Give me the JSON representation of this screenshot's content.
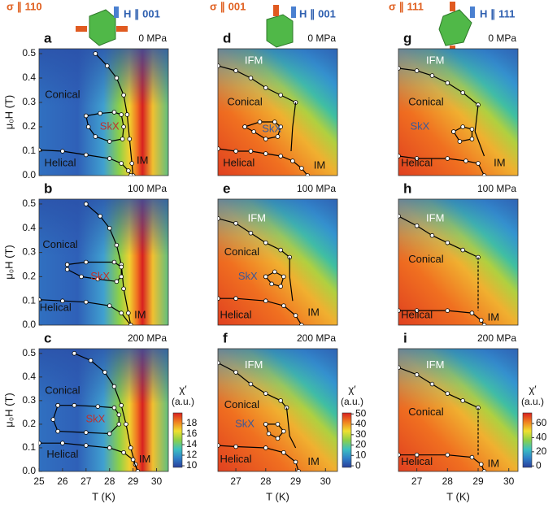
{
  "headers": [
    {
      "stress": "σ ∥ 110",
      "field": "H ∥ 001"
    },
    {
      "stress": "σ ∥ 001",
      "field": "H ∥ 001"
    },
    {
      "stress": "σ ∥ 111",
      "field": "H ∥ 111"
    }
  ],
  "chart_data": [
    {
      "type": "phase-diagram",
      "panel": "a",
      "pressure": "0 MPa",
      "xlim": [
        25,
        30.5
      ],
      "ylim": [
        0,
        0.52
      ],
      "ylabel": "μ₀H (T)",
      "yticks": [
        {
          "value": 0,
          "label": "0.0"
        },
        0.1,
        0.2,
        0.3,
        0.4,
        0.5
      ],
      "annotations": [
        "Conical",
        "SkX",
        "Helical",
        "IM"
      ],
      "series": [
        {
          "color": "#000",
          "markers": true,
          "x": [
            27.4,
            27.9,
            28.3,
            28.6,
            28.75,
            28.85,
            28.95,
            29.0
          ],
          "values": [
            0.5,
            0.45,
            0.4,
            0.33,
            0.25,
            0.15,
            0.05,
            0.0
          ]
        },
        {
          "color": "#000",
          "markers": true,
          "x": [
            27.0,
            27.6,
            28.2,
            28.5,
            28.6,
            28.55,
            28.0,
            27.4,
            27.1,
            27.0
          ],
          "values": [
            0.245,
            0.255,
            0.26,
            0.25,
            0.2,
            0.15,
            0.14,
            0.16,
            0.2,
            0.245
          ]
        },
        {
          "color": "#000",
          "markers": true,
          "x": [
            25.0,
            26.0,
            27.0,
            28.0,
            28.5,
            28.8,
            28.9
          ],
          "values": [
            0.105,
            0.1,
            0.085,
            0.07,
            0.05,
            0.02,
            0.0
          ]
        }
      ]
    },
    {
      "type": "phase-diagram",
      "panel": "b",
      "pressure": "100 MPa",
      "xlim": [
        25,
        30.5
      ],
      "ylim": [
        0,
        0.52
      ],
      "ylabel": "μ₀H (T)",
      "yticks": [
        {
          "value": 0,
          "label": "0.0"
        },
        0.1,
        0.2,
        0.3,
        0.4,
        0.5
      ],
      "annotations": [
        "Conical",
        "SkX",
        "Helical",
        "IM"
      ],
      "series": [
        {
          "color": "#000",
          "markers": true,
          "x": [
            27.0,
            27.6,
            28.0,
            28.3,
            28.5,
            28.6,
            28.8,
            28.9
          ],
          "values": [
            0.5,
            0.45,
            0.4,
            0.33,
            0.25,
            0.15,
            0.05,
            0.0
          ]
        },
        {
          "color": "#000",
          "markers": true,
          "x": [
            26.2,
            27.0,
            28.2,
            28.5,
            28.5,
            28.3,
            27.5,
            26.8,
            26.2,
            26.2
          ],
          "values": [
            0.25,
            0.26,
            0.26,
            0.24,
            0.2,
            0.18,
            0.19,
            0.2,
            0.23,
            0.25
          ]
        },
        {
          "color": "#000",
          "markers": true,
          "x": [
            25.0,
            26.0,
            27.0,
            28.0,
            28.5,
            28.9
          ],
          "values": [
            0.105,
            0.1,
            0.095,
            0.08,
            0.05,
            0.0
          ]
        }
      ]
    },
    {
      "type": "phase-diagram",
      "panel": "c",
      "pressure": "200 MPa",
      "xlim": [
        25,
        30.5
      ],
      "ylim": [
        0,
        0.52
      ],
      "xlabel": "T (K)",
      "xticks": [
        25,
        26,
        27,
        28,
        29,
        30
      ],
      "ylabel": "μ₀H (T)",
      "yticks": [
        {
          "value": 0,
          "label": "0.0"
        },
        0.1,
        0.2,
        0.3,
        0.4,
        0.5
      ],
      "annotations": [
        "Conical",
        "SkX",
        "Helical",
        "IM"
      ],
      "series": [
        {
          "color": "#000",
          "markers": true,
          "x": [
            26.5,
            27.2,
            27.8,
            28.2,
            28.5,
            28.7,
            28.9,
            29.1,
            29.2
          ],
          "values": [
            0.5,
            0.47,
            0.42,
            0.36,
            0.28,
            0.2,
            0.1,
            0.03,
            0.0
          ]
        },
        {
          "color": "#000",
          "markers": true,
          "x": [
            25.8,
            26.5,
            27.5,
            28.2,
            28.4,
            28.4,
            28.0,
            27.0,
            25.8,
            25.6,
            25.8
          ],
          "values": [
            0.28,
            0.28,
            0.275,
            0.27,
            0.24,
            0.2,
            0.16,
            0.165,
            0.17,
            0.22,
            0.28
          ]
        },
        {
          "color": "#000",
          "markers": true,
          "x": [
            25.0,
            26.0,
            27.0,
            28.0,
            28.6,
            29.0,
            29.2
          ],
          "values": [
            0.12,
            0.12,
            0.11,
            0.1,
            0.08,
            0.05,
            0.0
          ]
        }
      ],
      "colorbar": {
        "label": "χ′",
        "unit": "(a.u.)",
        "lim": [
          9.7,
          20
        ],
        "ticks": [
          10,
          12,
          14,
          16,
          18
        ],
        "colors": [
          "#2a3f9a",
          "#2f80c8",
          "#3cc0c0",
          "#8cd048",
          "#f0e030",
          "#f08020",
          "#d82020"
        ]
      }
    },
    {
      "type": "phase-diagram",
      "panel": "d",
      "pressure": "0 MPa",
      "xlim": [
        26.4,
        30.4
      ],
      "ylim": [
        0,
        0.52
      ],
      "annotations": [
        "IFM",
        "Conical",
        "SkX",
        "Helical",
        "IM"
      ],
      "series": [
        {
          "color": "#000",
          "markers": true,
          "x": [
            26.4,
            27.0,
            27.5,
            28.0,
            28.5,
            29.0
          ],
          "values": [
            0.45,
            0.43,
            0.4,
            0.36,
            0.33,
            0.3
          ]
        },
        {
          "color": "#000",
          "markers": false,
          "x": [
            29.0,
            28.9,
            28.85
          ],
          "values": [
            0.3,
            0.2,
            0.1
          ]
        },
        {
          "color": "#000",
          "markers": true,
          "x": [
            27.3,
            27.8,
            28.3,
            28.5,
            28.4,
            28.0,
            27.6,
            27.3
          ],
          "values": [
            0.2,
            0.22,
            0.22,
            0.2,
            0.16,
            0.15,
            0.18,
            0.2
          ]
        },
        {
          "color": "#000",
          "markers": true,
          "x": [
            26.4,
            27.0,
            27.5,
            28.0,
            28.5,
            28.9,
            29.2,
            29.4
          ],
          "values": [
            0.11,
            0.1,
            0.1,
            0.09,
            0.08,
            0.06,
            0.03,
            0.0
          ]
        }
      ]
    },
    {
      "type": "phase-diagram",
      "panel": "e",
      "pressure": "100 MPa",
      "xlim": [
        26.4,
        30.4
      ],
      "ylim": [
        0,
        0.52
      ],
      "annotations": [
        "IFM",
        "Conical",
        "SkX",
        "Helical",
        "IM"
      ],
      "series": [
        {
          "color": "#000",
          "markers": true,
          "x": [
            26.4,
            27.0,
            27.5,
            28.0,
            28.5,
            28.8
          ],
          "values": [
            0.44,
            0.42,
            0.38,
            0.34,
            0.31,
            0.28
          ]
        },
        {
          "color": "#000",
          "markers": false,
          "x": [
            28.8,
            28.8,
            28.9
          ],
          "values": [
            0.28,
            0.2,
            0.1
          ]
        },
        {
          "color": "#000",
          "markers": true,
          "x": [
            28.0,
            28.3,
            28.6,
            28.5,
            28.2,
            28.0
          ],
          "values": [
            0.2,
            0.22,
            0.2,
            0.16,
            0.17,
            0.2
          ]
        },
        {
          "color": "#000",
          "markers": true,
          "x": [
            26.4,
            27.0,
            28.0,
            28.6,
            29.0,
            29.2
          ],
          "values": [
            0.11,
            0.11,
            0.1,
            0.08,
            0.04,
            0.0
          ]
        }
      ]
    },
    {
      "type": "phase-diagram",
      "panel": "f",
      "pressure": "200 MPa",
      "xlim": [
        26.4,
        30.4
      ],
      "ylim": [
        0,
        0.52
      ],
      "xlabel": "T (K)",
      "xticks": [
        27,
        28,
        29,
        30
      ],
      "annotations": [
        "IFM",
        "Conical",
        "SkX",
        "Helical",
        "IM"
      ],
      "series": [
        {
          "color": "#000",
          "markers": true,
          "x": [
            26.4,
            27.0,
            27.5,
            28.0,
            28.5,
            28.7
          ],
          "values": [
            0.46,
            0.42,
            0.37,
            0.33,
            0.3,
            0.27
          ]
        },
        {
          "color": "#000",
          "markers": false,
          "x": [
            28.7,
            28.8,
            29.0
          ],
          "values": [
            0.27,
            0.15,
            0.1
          ]
        },
        {
          "color": "#000",
          "markers": true,
          "x": [
            28.0,
            28.4,
            28.6,
            28.4,
            28.1,
            28.0
          ],
          "values": [
            0.2,
            0.2,
            0.17,
            0.14,
            0.16,
            0.2
          ]
        },
        {
          "color": "#000",
          "markers": true,
          "x": [
            26.4,
            27.0,
            28.0,
            28.6,
            29.0,
            29.1
          ],
          "values": [
            0.11,
            0.105,
            0.1,
            0.08,
            0.04,
            0.0
          ]
        }
      ],
      "colorbar": {
        "label": "χ′",
        "unit": "(a.u.)",
        "lim": [
          -1.5,
          51
        ],
        "ticks": [
          0,
          10,
          20,
          30,
          40,
          50
        ],
        "colors": [
          "#2a3f9a",
          "#2f80c8",
          "#3cc0c0",
          "#8cd048",
          "#f0e030",
          "#f08020",
          "#d82020"
        ]
      }
    },
    {
      "type": "phase-diagram",
      "panel": "g",
      "pressure": "0 MPa",
      "xlim": [
        26.4,
        30.3
      ],
      "ylim": [
        0,
        0.52
      ],
      "annotations": [
        "IFM",
        "Conical",
        "SkX",
        "Helical",
        "IM"
      ],
      "series": [
        {
          "color": "#000",
          "markers": true,
          "x": [
            26.4,
            27.0,
            27.5,
            28.0,
            28.5,
            29.0
          ],
          "values": [
            0.44,
            0.43,
            0.41,
            0.38,
            0.34,
            0.29
          ]
        },
        {
          "color": "#000",
          "markers": false,
          "x": [
            29.0,
            28.9,
            29.2
          ],
          "values": [
            0.29,
            0.18,
            0.08
          ]
        },
        {
          "color": "#000",
          "markers": true,
          "x": [
            28.2,
            28.5,
            28.8,
            28.8,
            28.4,
            28.2
          ],
          "values": [
            0.18,
            0.2,
            0.19,
            0.15,
            0.14,
            0.18
          ]
        },
        {
          "color": "#000",
          "markers": true,
          "x": [
            26.4,
            27.0,
            28.0,
            28.6,
            29.0,
            29.2
          ],
          "values": [
            0.08,
            0.07,
            0.07,
            0.06,
            0.05,
            0.0
          ]
        }
      ]
    },
    {
      "type": "phase-diagram",
      "panel": "h",
      "pressure": "100 MPa",
      "xlim": [
        26.4,
        30.3
      ],
      "ylim": [
        0,
        0.52
      ],
      "annotations": [
        "IFM",
        "Conical",
        "Helical",
        "IM"
      ],
      "series": [
        {
          "color": "#000",
          "markers": true,
          "x": [
            26.4,
            27.0,
            27.5,
            28.0,
            28.5,
            29.0
          ],
          "values": [
            0.45,
            0.41,
            0.37,
            0.34,
            0.31,
            0.28
          ]
        },
        {
          "color": "#000",
          "markers": false,
          "dashed": true,
          "x": [
            29.0,
            29.0
          ],
          "values": [
            0.28,
            0.06
          ]
        },
        {
          "color": "#000",
          "markers": true,
          "x": [
            26.4,
            27.0,
            28.0,
            28.8,
            29.1,
            29.2
          ],
          "values": [
            0.06,
            0.06,
            0.06,
            0.05,
            0.02,
            0.0
          ]
        }
      ]
    },
    {
      "type": "phase-diagram",
      "panel": "i",
      "pressure": "200 MPa",
      "xlim": [
        26.4,
        30.3
      ],
      "ylim": [
        0,
        0.52
      ],
      "xlabel": "T (K)",
      "xticks": [
        27,
        28,
        29,
        30
      ],
      "annotations": [
        "IFM",
        "Conical",
        "Helical",
        "IM"
      ],
      "series": [
        {
          "color": "#000",
          "markers": true,
          "x": [
            26.4,
            27.0,
            27.5,
            28.0,
            28.5,
            29.0
          ],
          "values": [
            0.44,
            0.41,
            0.37,
            0.33,
            0.3,
            0.27
          ]
        },
        {
          "color": "#000",
          "markers": false,
          "dashed": true,
          "x": [
            29.0,
            29.0
          ],
          "values": [
            0.27,
            0.07
          ]
        },
        {
          "color": "#000",
          "markers": true,
          "x": [
            26.4,
            27.0,
            28.0,
            28.8,
            29.1,
            29.2
          ],
          "values": [
            0.07,
            0.07,
            0.07,
            0.06,
            0.03,
            0.0
          ]
        }
      ],
      "colorbar": {
        "label": "χ′",
        "unit": "(a.u.)",
        "lim": [
          -2,
          75
        ],
        "ticks": [
          0,
          20,
          40,
          60
        ],
        "colors": [
          "#2a3f9a",
          "#2f80c8",
          "#3cc0c0",
          "#8cd048",
          "#f0e030",
          "#f08020",
          "#d82020"
        ]
      }
    }
  ]
}
